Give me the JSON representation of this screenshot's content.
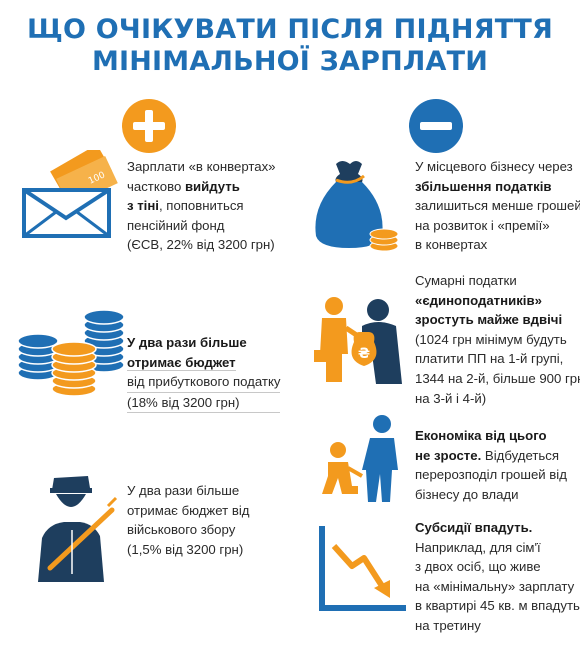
{
  "title": {
    "line1": "ЩО ОЧІКУВАТИ ПІСЛЯ ПІДНЯТТЯ",
    "line2": "МІНІМАЛЬНОЇ ЗАРПЛАТИ"
  },
  "colors": {
    "blue": "#1f6fb4",
    "orange": "#f39a1e",
    "dark": "#1e3e5e"
  },
  "plus_icon": "plus-icon",
  "minus_icon": "minus-icon",
  "left": [
    {
      "icon": "envelope-money-icon",
      "lines": [
        {
          "t": "Зарплати «в конвертах»",
          "b": false
        },
        {
          "t": "частково ",
          "b": false,
          "tb": "вийдуть"
        },
        {
          "t": "з тіні",
          "b": true,
          "tn": ", поповниться"
        },
        {
          "t": "пенсійний фонд",
          "b": false
        },
        {
          "t": "(ЄСВ, 22% від 3200 грн)",
          "b": false
        }
      ]
    },
    {
      "icon": "coins-stack-icon",
      "lines": [
        {
          "t": "У два рази більше",
          "b": true
        },
        {
          "t": "отримає бюджет",
          "b": true
        },
        {
          "t": "від прибуткового податку",
          "b": false
        },
        {
          "t": "(18% від 3200 грн)",
          "b": false
        }
      ]
    },
    {
      "icon": "soldier-icon",
      "lines": [
        {
          "t": "У два рази більше",
          "b": false
        },
        {
          "t": "отримає бюджет від",
          "b": false
        },
        {
          "t": "військового збору",
          "b": false
        },
        {
          "t": "(1,5% від 3200 грн)",
          "b": false
        }
      ]
    }
  ],
  "right": [
    {
      "icon": "money-bag-icon",
      "lines": [
        {
          "t": "У місцевого бізнесу через",
          "b": false
        },
        {
          "t": "збільшення податків",
          "b": true
        },
        {
          "t": "залишиться менше грошей",
          "b": false
        },
        {
          "t": "на розвиток і «премії»",
          "b": false
        },
        {
          "t": "в конвертах",
          "b": false
        }
      ]
    },
    {
      "icon": "tax-collector-icon",
      "lines": [
        {
          "t": "Сумарні податки",
          "b": false
        },
        {
          "t": "«єдиноподатників»",
          "b": true
        },
        {
          "t": "зростуть майже вдвічі",
          "b": true
        },
        {
          "t": "(1024 грн мінімум будуть",
          "b": false
        },
        {
          "t": "платити ПП на 1-й групі,",
          "b": false
        },
        {
          "t": "1344 на 2-й, більше 900 грн",
          "b": false
        },
        {
          "t": "на 3-й і 4-й)",
          "b": false
        }
      ]
    },
    {
      "icon": "people-redistribution-icon",
      "lines": [
        {
          "t": "Економіка від цього",
          "b": true
        },
        {
          "t": "не зросте.",
          "b": true,
          "tn": " Відбудеться"
        },
        {
          "t": "перерозподіл грошей від",
          "b": false
        },
        {
          "t": "бізнесу до влади",
          "b": false
        }
      ]
    },
    {
      "icon": "falling-chart-icon",
      "lines": [
        {
          "t": "Субсидії впадуть.",
          "b": true
        },
        {
          "t": "Наприклад, для сім'ї",
          "b": false
        },
        {
          "t": "з двох осіб, що живе",
          "b": false
        },
        {
          "t": "на «мінімальну» зарплату",
          "b": false
        },
        {
          "t": "в квартирі 45 кв. м впадуть",
          "b": false
        },
        {
          "t": "на третину",
          "b": false
        }
      ]
    }
  ]
}
